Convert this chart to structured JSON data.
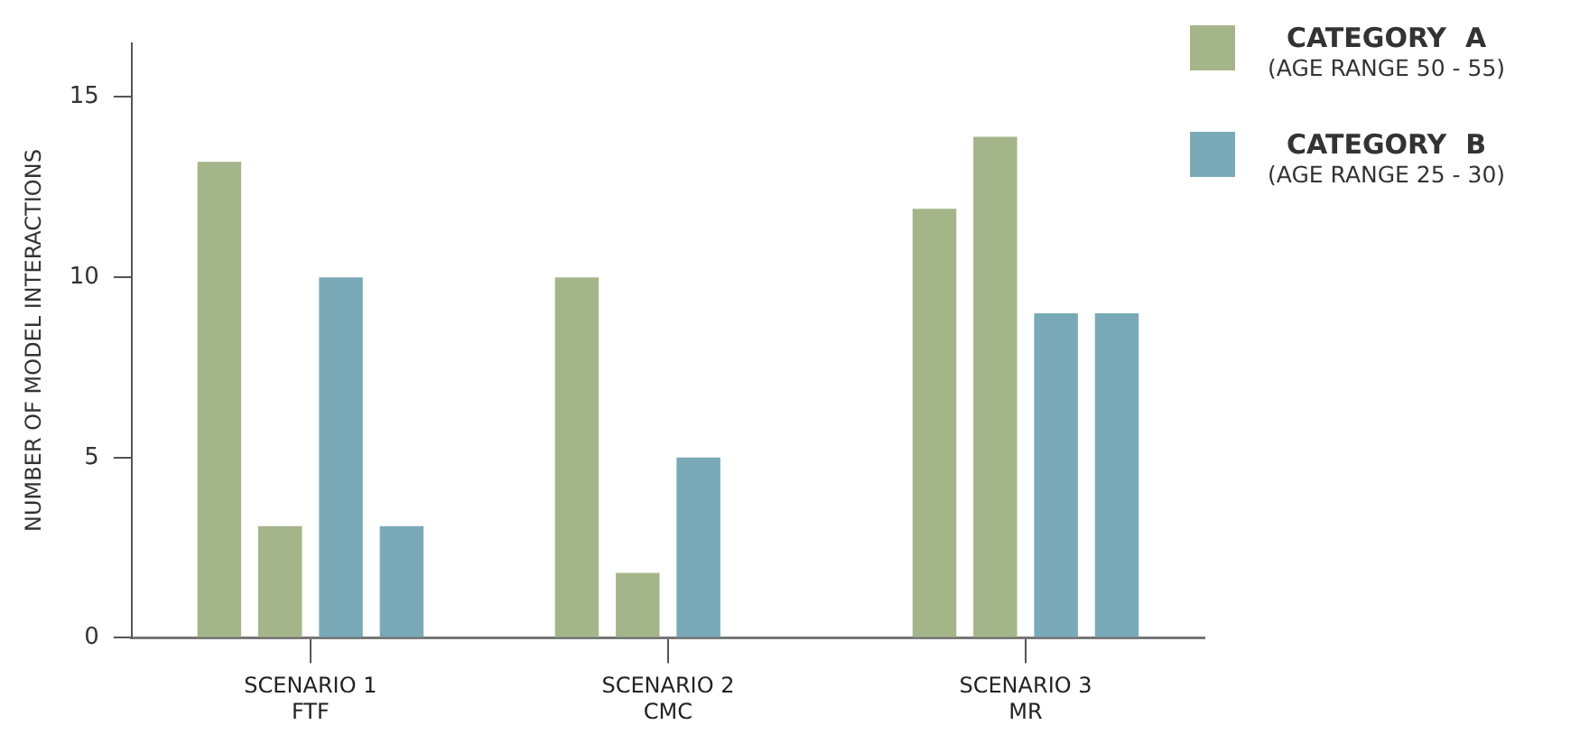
{
  "chart_data": {
    "type": "bar",
    "ylabel": "NUMBER OF MODEL INTERACTIONS",
    "categories": [
      "SCENARIO 1\nFTF",
      "SCENARIO 2\nCMC",
      "SCENARIO 3\nMR"
    ],
    "series": [
      {
        "name": "CATEGORY  A\n(AGE RANGE 50 - 55)",
        "color": "#a5b58a",
        "values": [
          13.2,
          10,
          11.9
        ]
      },
      {
        "color": "#a5b58a",
        "values": [
          3.1,
          1.8,
          13.9
        ]
      },
      {
        "name": "CATEGORY  B\n(AGE RANGE 25 - 30)",
        "color": "#7aa9b8",
        "values": [
          10,
          5,
          9
        ]
      },
      {
        "color": "#7aa9b8",
        "values": [
          3.1,
          null,
          9
        ]
      }
    ],
    "ylim": [
      0,
      16.5
    ],
    "yticks": [
      0,
      5,
      10,
      15
    ],
    "grid": false,
    "legend": "top right"
  }
}
